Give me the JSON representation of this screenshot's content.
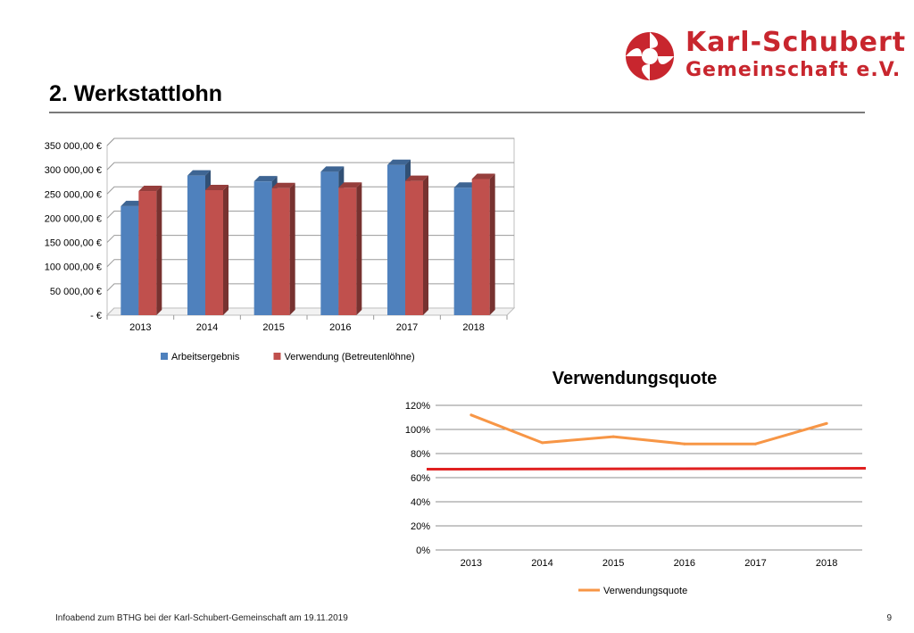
{
  "header": {
    "title": "2. Werkstattlohn",
    "logo": {
      "line1": "Karl-Schubert",
      "line2": "Gemeinschaft e.V.",
      "icon": "karl-schubert-logo-icon",
      "color": "#c8262e"
    }
  },
  "footer": {
    "text": "Infoabend zum BTHG bei der Karl-Schubert-Gemeinschaft am 19.11.2019",
    "page": "9"
  },
  "chart_data": [
    {
      "type": "bar",
      "title": "",
      "categories": [
        "2013",
        "2014",
        "2015",
        "2016",
        "2017",
        "2018"
      ],
      "series": [
        {
          "name": "Arbeitsergebnis",
          "color": "#4f81bd",
          "values": [
            225000,
            288000,
            276000,
            296000,
            310000,
            263000
          ]
        },
        {
          "name": "Verwendung (Betreutenlöhne)",
          "color": "#c0504d",
          "values": [
            256000,
            258000,
            262000,
            263000,
            277000,
            281000
          ]
        }
      ],
      "ylim": [
        0,
        350000
      ],
      "yticks": [
        "-   €",
        "50 000,00 €",
        "100 000,00 €",
        "150 000,00 €",
        "200 000,00 €",
        "250 000,00 €",
        "300 000,00 €",
        "350 000,00 €"
      ],
      "style": "3d-clustered",
      "grid": true,
      "legend_position": "bottom"
    },
    {
      "type": "line",
      "title": "Verwendungsquote",
      "categories": [
        "2013",
        "2014",
        "2015",
        "2016",
        "2017",
        "2018"
      ],
      "series": [
        {
          "name": "Verwendungsquote",
          "color": "#f79646",
          "values": [
            112,
            89,
            94,
            88,
            88,
            105
          ]
        }
      ],
      "reference_line": {
        "value": 67,
        "color": "#e02020"
      },
      "ylim": [
        0,
        120
      ],
      "yticks": [
        "0%",
        "20%",
        "40%",
        "60%",
        "80%",
        "100%",
        "120%"
      ],
      "grid": true,
      "legend_position": "bottom"
    }
  ]
}
